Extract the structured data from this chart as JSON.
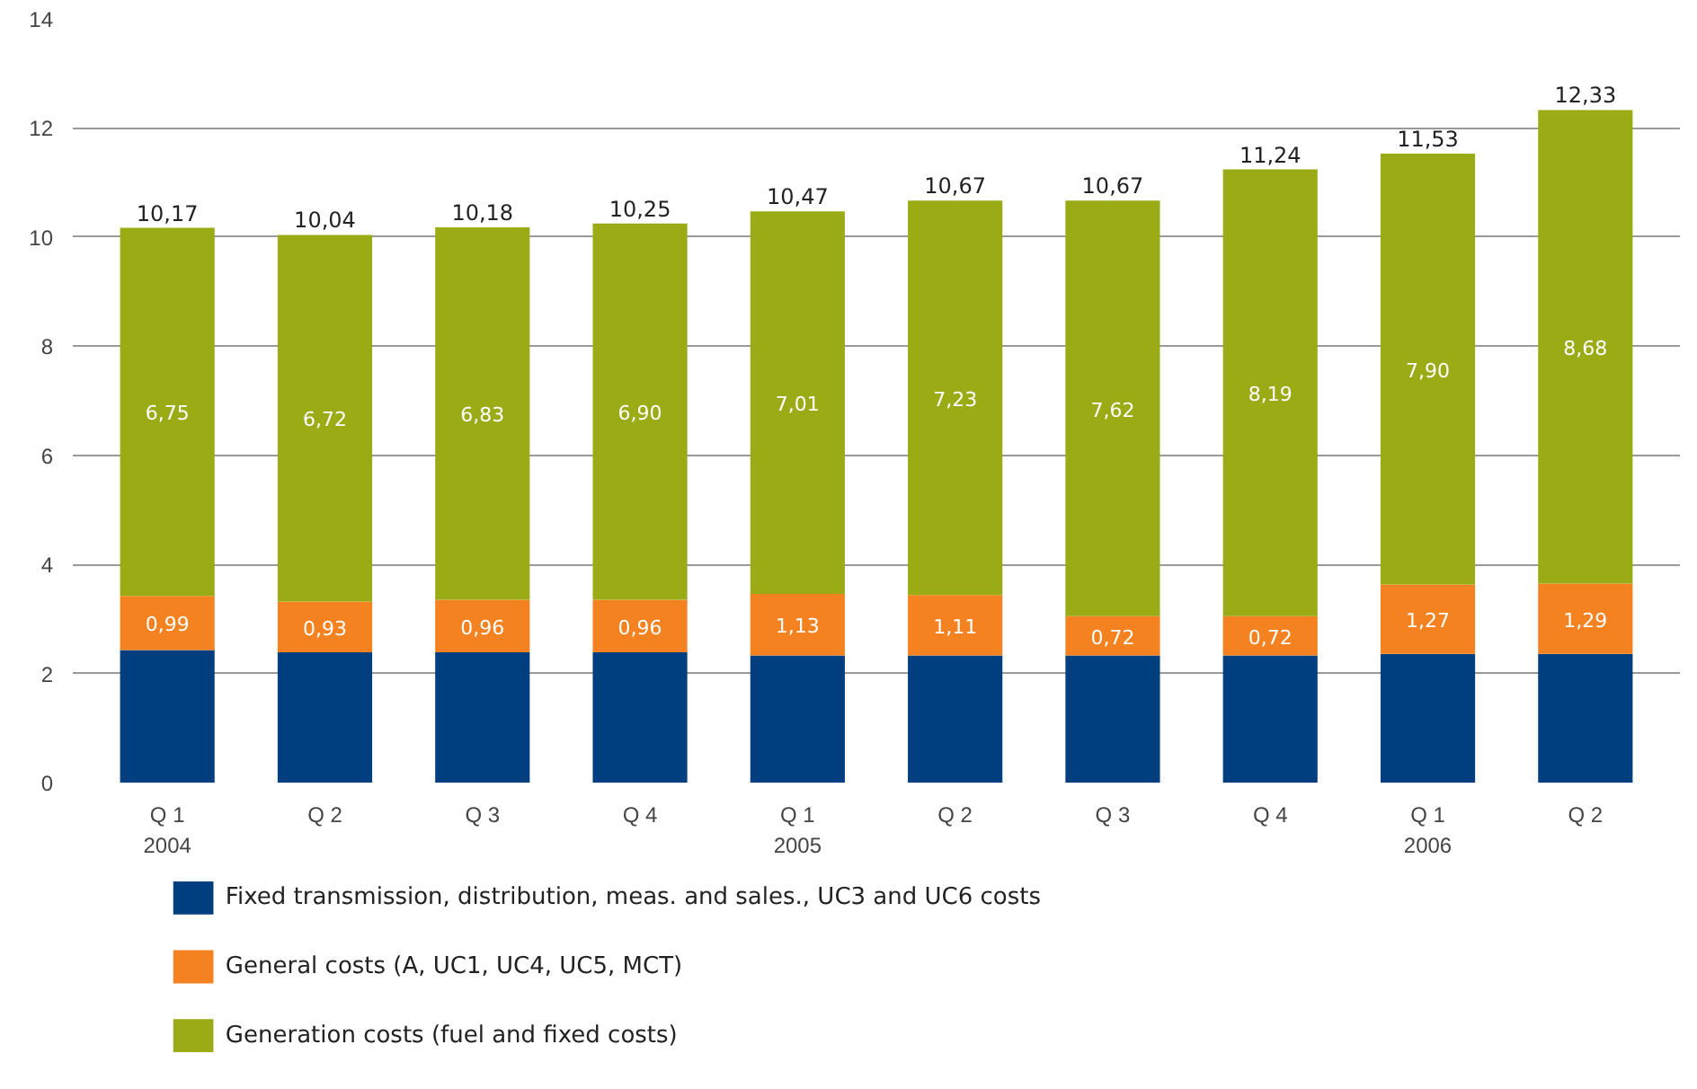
{
  "chart_data": {
    "type": "bar",
    "stacked": true,
    "categories": [
      "Q 1\n2004",
      "Q 2",
      "Q 3",
      "Q 4",
      "Q 1\n2005",
      "Q 2",
      "Q 3",
      "Q 4",
      "Q 1\n2006",
      "Q 2"
    ],
    "series": [
      {
        "name": "Fixed transmission, distribution, meas. and sales., UC3 and UC6 costs",
        "color": "#003f7f",
        "values": [
          2.43,
          2.39,
          2.39,
          2.39,
          2.33,
          2.33,
          2.33,
          2.33,
          2.36,
          2.36
        ]
      },
      {
        "name": "General costs (A, UC1, UC4, UC5, MCT)",
        "color": "#f58220",
        "values": [
          0.99,
          0.93,
          0.96,
          0.96,
          1.13,
          1.11,
          0.72,
          0.72,
          1.27,
          1.29
        ],
        "value_labels": [
          "0,99",
          "0,93",
          "0,96",
          "0,96",
          "1,13",
          "1,11",
          "0,72",
          "0,72",
          "1,27",
          "1,29"
        ]
      },
      {
        "name": "Generation costs (fuel and fixed costs)",
        "color": "#9aab16",
        "values": [
          6.75,
          6.72,
          6.83,
          6.9,
          7.01,
          7.23,
          7.62,
          8.19,
          7.9,
          8.68
        ],
        "value_labels": [
          "6,75",
          "6,72",
          "6,83",
          "6,90",
          "7,01",
          "7,23",
          "7,62",
          "8,19",
          "7,90",
          "8,68"
        ]
      }
    ],
    "totals": [
      "10,17",
      "10,04",
      "10,18",
      "10,25",
      "10,47",
      "10,67",
      "10,67",
      "11,24",
      "11,53",
      "12,33"
    ],
    "ylim": [
      0,
      14
    ],
    "yticks": [
      0,
      2,
      4,
      6,
      8,
      10,
      12,
      14
    ],
    "grid": "y",
    "legend": "bottom"
  }
}
